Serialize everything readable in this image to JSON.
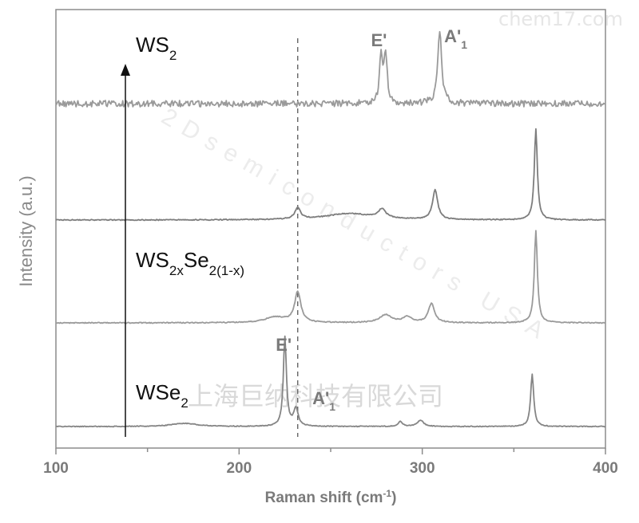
{
  "chart_data": {
    "type": "line",
    "xlabel_main": "Raman shift (cm",
    "xlabel_sup": "-1",
    "xlabel_close": ")",
    "ylabel": "Intensity (a.u.)",
    "xlim": [
      100,
      400
    ],
    "x_ticks": [
      100,
      200,
      300,
      400
    ],
    "reference_line_x": 232,
    "grid": false,
    "legend": "none",
    "series": [
      {
        "key": "ws2",
        "label_parts": [
          {
            "t": "WS"
          },
          {
            "t": "2",
            "sub": true
          }
        ],
        "color": "#9a9a9a",
        "baseline": 130,
        "noise": 4,
        "peaks": [
          {
            "x": 277.5,
            "h": 60,
            "w": 1.0
          },
          {
            "x": 280.0,
            "h": 62,
            "w": 1.0
          },
          {
            "x": 309.5,
            "h": 93,
            "w": 1.3
          }
        ],
        "annotations": [
          {
            "text": "E'",
            "sub": "",
            "x": 272,
            "y": 58
          },
          {
            "text": "A'",
            "sub": "1",
            "x": 312,
            "y": 53
          }
        ]
      },
      {
        "key": "upper_alloy",
        "label_parts": [],
        "color": "#7d7d7d",
        "baseline": 276,
        "noise": 0.6,
        "peaks": [
          {
            "x": 232,
            "h": 14,
            "w": 1.8
          },
          {
            "x": 260,
            "h": 8,
            "w": 16
          },
          {
            "x": 278,
            "h": 11,
            "w": 2.5
          },
          {
            "x": 307,
            "h": 37,
            "w": 1.7
          },
          {
            "x": 362,
            "h": 114,
            "w": 1.0
          }
        ],
        "annotations": []
      },
      {
        "key": "ws2xse2",
        "label_parts": [
          {
            "t": "WS"
          },
          {
            "t": "2x",
            "sub": true
          },
          {
            "t": "Se"
          },
          {
            "t": "2(1-x)",
            "sub": true
          }
        ],
        "color": "#9a9a9a",
        "baseline": 405,
        "noise": 0.6,
        "peaks": [
          {
            "x": 232,
            "h": 38,
            "w": 2.0
          },
          {
            "x": 220,
            "h": 7,
            "w": 7
          },
          {
            "x": 280,
            "h": 10,
            "w": 4
          },
          {
            "x": 292,
            "h": 7,
            "w": 3
          },
          {
            "x": 305,
            "h": 24,
            "w": 2.0
          },
          {
            "x": 362,
            "h": 116,
            "w": 1.0
          }
        ],
        "annotations": []
      },
      {
        "key": "wse2",
        "label_parts": [
          {
            "t": "WSe"
          },
          {
            "t": "2",
            "sub": true
          }
        ],
        "color": "#858585",
        "baseline": 535,
        "noise": 0.5,
        "peaks": [
          {
            "x": 225,
            "h": 112,
            "w": 1.0
          },
          {
            "x": 231,
            "h": 22,
            "w": 1.5
          },
          {
            "x": 170,
            "h": 4,
            "w": 8
          },
          {
            "x": 288,
            "h": 6,
            "w": 1.5
          },
          {
            "x": 299,
            "h": 8,
            "w": 2
          },
          {
            "x": 360,
            "h": 66,
            "w": 1.0
          }
        ],
        "annotations": [
          {
            "text": "E'",
            "sub": "",
            "x": 220,
            "y": 440
          },
          {
            "text": "A'",
            "sub": "1",
            "x": 240,
            "y": 507
          }
        ]
      }
    ]
  },
  "watermarks": {
    "top_right": "chem17.com",
    "diagonal": "2Dsemiconductors USA",
    "center": "上海巨纳科技有限公司"
  }
}
